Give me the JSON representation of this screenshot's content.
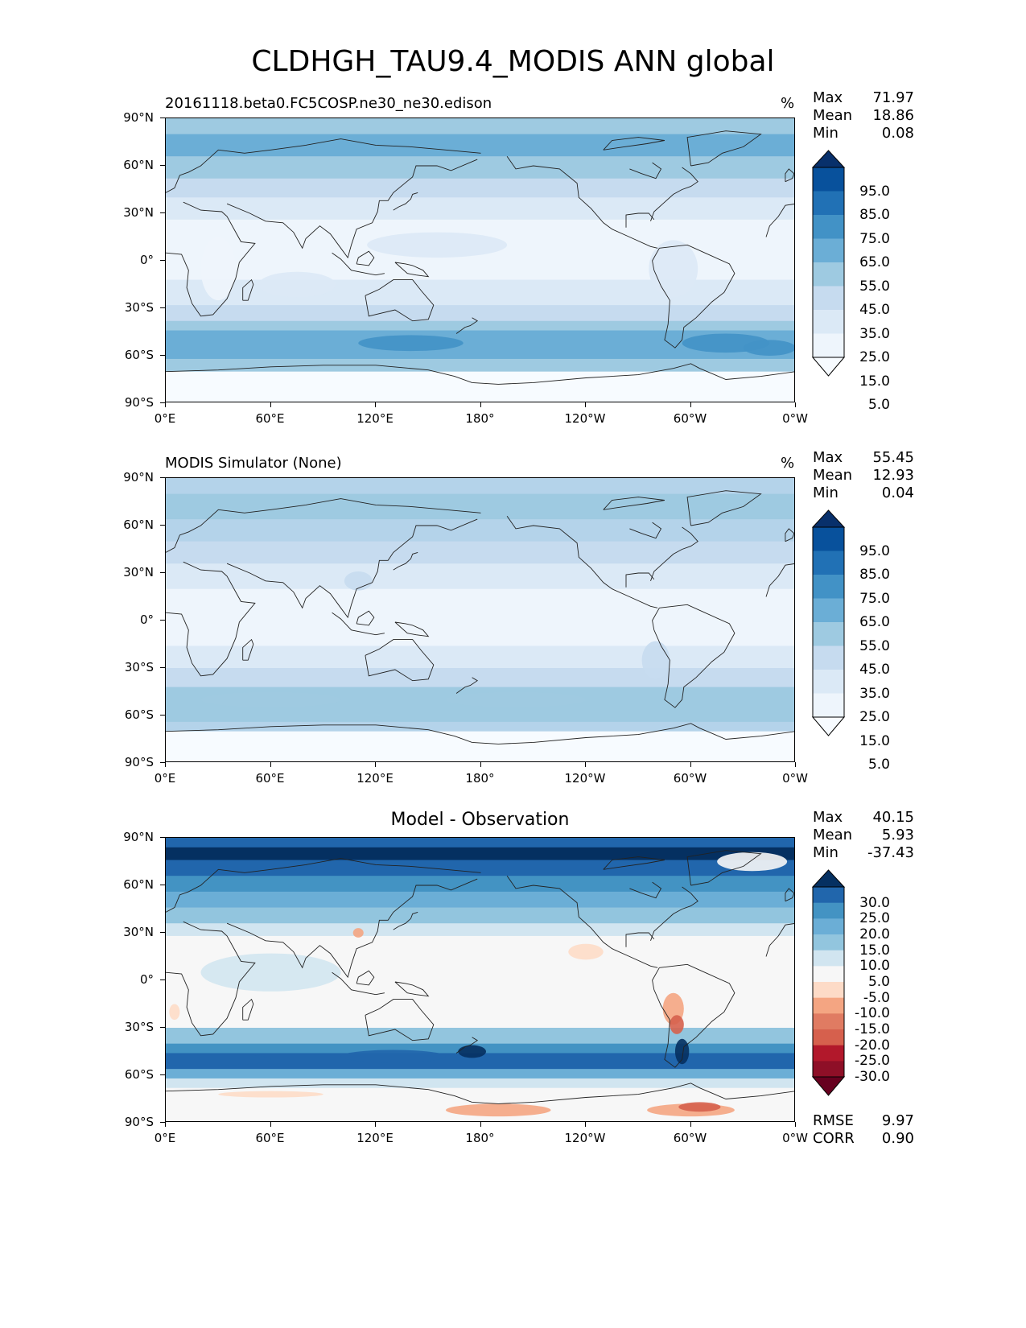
{
  "figure": {
    "title": "CLDHGH_TAU9.4_MODIS ANN global"
  },
  "axes": {
    "y_ticks": [
      "90°N",
      "60°N",
      "30°N",
      "0°",
      "30°S",
      "60°S",
      "90°S"
    ],
    "x_ticks": [
      "0°E",
      "60°E",
      "120°E",
      "180°",
      "120°W",
      "60°W",
      "0°W"
    ]
  },
  "panels": [
    {
      "title": "20161118.beta0.FC5COSP.ne30_ne30.edison",
      "units": "%",
      "stats": [
        {
          "label": "Max",
          "value": "71.97"
        },
        {
          "label": "Mean",
          "value": "18.86"
        },
        {
          "label": "Min",
          "value": "0.08"
        }
      ],
      "colorbar": {
        "labels": [
          "95.0",
          "85.0",
          "75.0",
          "65.0",
          "55.0",
          "45.0",
          "35.0",
          "25.0",
          "15.0",
          "5.0"
        ],
        "colors": [
          "#08306b",
          "#08519c",
          "#2171b5",
          "#4292c6",
          "#6baed6",
          "#9ecae1",
          "#c6dbef",
          "#dbe9f6",
          "#eef5fc",
          "#f7fbff"
        ]
      },
      "palette": {
        "low": "#f7fbff",
        "b1": "#eef5fc",
        "b2": "#dbe9f6",
        "b3": "#c6dbef",
        "b4": "#9ecae1",
        "b5": "#6baed6",
        "b6": "#4292c6"
      }
    },
    {
      "title": "MODIS Simulator (None)",
      "units": "%",
      "stats": [
        {
          "label": "Max",
          "value": "55.45"
        },
        {
          "label": "Mean",
          "value": "12.93"
        },
        {
          "label": "Min",
          "value": "0.04"
        }
      ],
      "colorbar": {
        "labels": [
          "95.0",
          "85.0",
          "75.0",
          "65.0",
          "55.0",
          "45.0",
          "35.0",
          "25.0",
          "15.0",
          "5.0"
        ],
        "colors": [
          "#08306b",
          "#08519c",
          "#2171b5",
          "#4292c6",
          "#6baed6",
          "#9ecae1",
          "#c6dbef",
          "#dbe9f6",
          "#eef5fc",
          "#f7fbff"
        ]
      },
      "palette": {
        "low": "#f7fbff",
        "b1": "#eef5fc",
        "b2": "#dbe9f6",
        "b3": "#c6dbef",
        "b4": "#b4d3ea",
        "b5": "#9ecae1",
        "b6": "#8dbfdd"
      }
    },
    {
      "title": "Model - Observation",
      "stats": [
        {
          "label": "Max",
          "value": "40.15"
        },
        {
          "label": "Mean",
          "value": "5.93"
        },
        {
          "label": "Min",
          "value": "-37.43"
        }
      ],
      "metrics": [
        {
          "label": "RMSE",
          "value": "9.97"
        },
        {
          "label": "CORR",
          "value": "0.90"
        }
      ],
      "colorbar": {
        "labels": [
          "30.0",
          "25.0",
          "20.0",
          "15.0",
          "10.0",
          "5.0",
          "-5.0",
          "-10.0",
          "-15.0",
          "-20.0",
          "-25.0",
          "-30.0"
        ],
        "colors": [
          "#053061",
          "#2166ac",
          "#4393c3",
          "#6baed6",
          "#92c5de",
          "#d1e5f0",
          "#f7f7f7",
          "#fddbc7",
          "#f4a582",
          "#e07b62",
          "#d6604d",
          "#b2182b",
          "#8e0f27",
          "#67001f"
        ]
      },
      "palette": {
        "low": "#f7f7f7",
        "b1": "#d1e5f0",
        "b2": "#92c5de",
        "b3": "#6baed6",
        "b4": "#4393c3",
        "b5": "#2166ac",
        "b6": "#053061",
        "r1": "#fddbc7",
        "r2": "#f4a582",
        "r3": "#d6604d",
        "r4": "#b2182b"
      }
    }
  ]
}
